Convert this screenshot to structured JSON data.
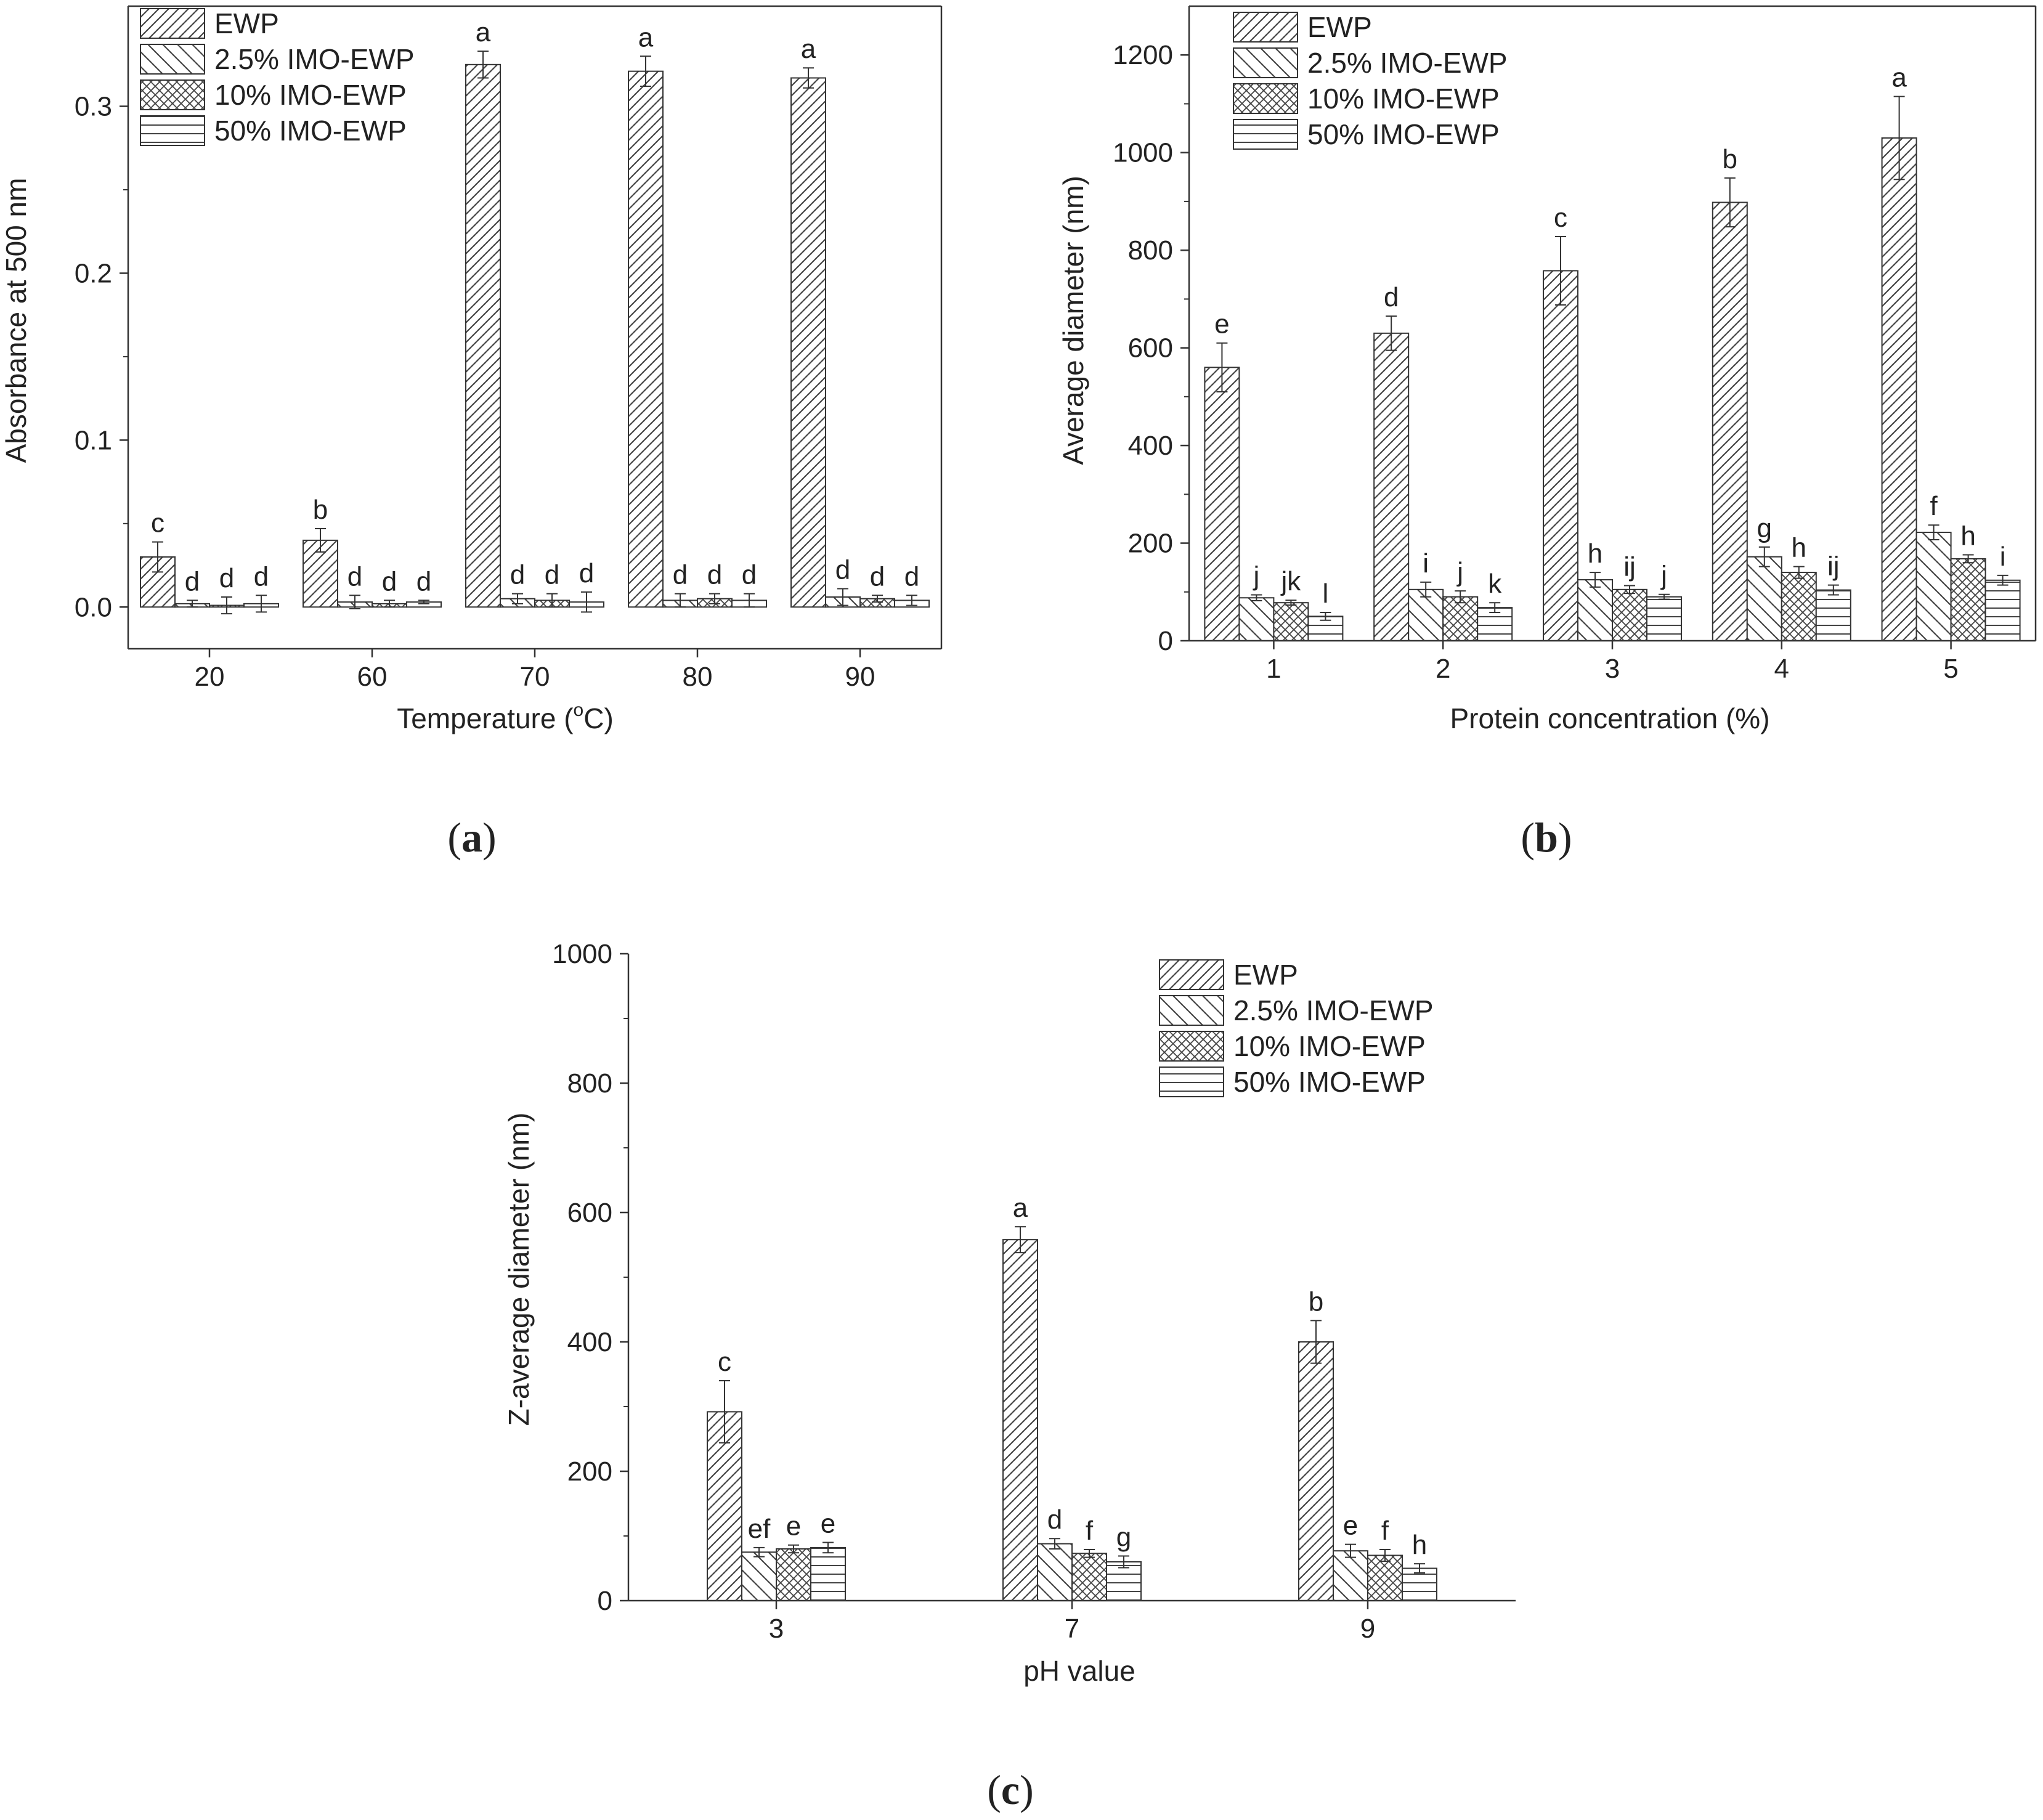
{
  "series_names": [
    "EWP",
    "2.5% IMO-EWP",
    "10% IMO-EWP",
    "50% IMO-EWP"
  ],
  "panel_labels": [
    "a",
    "b",
    "c"
  ],
  "chart_data": [
    {
      "id": "a",
      "type": "bar",
      "title": "",
      "xlabel": "Temperature (",
      "xlabel_sup": "o",
      "xlabel_tail": "C)",
      "ylabel": "Absorbance at  500 nm",
      "categories": [
        "20",
        "60",
        "70",
        "80",
        "90"
      ],
      "ylim": [
        -0.025,
        0.36
      ],
      "yticks": [
        0.0,
        0.1,
        0.2,
        0.3
      ],
      "ytick_labels": [
        "0.0",
        "0.1",
        "0.2",
        "0.3"
      ],
      "legend_position": "top-left",
      "grid": false,
      "series": [
        {
          "name": "EWP",
          "values": [
            0.03,
            0.04,
            0.325,
            0.321,
            0.317
          ],
          "errors": [
            0.009,
            0.007,
            0.008,
            0.009,
            0.006
          ],
          "labels": [
            "c",
            "b",
            "a",
            "a",
            "a"
          ]
        },
        {
          "name": "2.5% IMO-EWP",
          "values": [
            0.002,
            0.003,
            0.005,
            0.004,
            0.006
          ],
          "errors": [
            0.002,
            0.004,
            0.003,
            0.004,
            0.005
          ],
          "labels": [
            "d",
            "d",
            "d",
            "d",
            "d"
          ]
        },
        {
          "name": "10% IMO-EWP",
          "values": [
            0.001,
            0.002,
            0.004,
            0.005,
            0.005
          ],
          "errors": [
            0.005,
            0.002,
            0.004,
            0.003,
            0.002
          ],
          "labels": [
            "d",
            "d",
            "d",
            "d",
            "d"
          ]
        },
        {
          "name": "50% IMO-EWP",
          "values": [
            0.002,
            0.003,
            0.003,
            0.004,
            0.004
          ],
          "errors": [
            0.005,
            0.001,
            0.006,
            0.004,
            0.003
          ],
          "labels": [
            "d",
            "d",
            "d",
            "d",
            "d"
          ]
        }
      ]
    },
    {
      "id": "b",
      "type": "bar",
      "title": "",
      "xlabel": "Protein concentration (%)",
      "ylabel": "Average diameter (nm)",
      "categories": [
        "1",
        "2",
        "3",
        "4",
        "5"
      ],
      "ylim": [
        0,
        1300
      ],
      "yticks": [
        0,
        200,
        400,
        600,
        800,
        1000,
        1200
      ],
      "ytick_labels": [
        "0",
        "200",
        "400",
        "600",
        "800",
        "1000",
        "1200"
      ],
      "legend_position": "top-left",
      "grid": false,
      "series": [
        {
          "name": "EWP",
          "values": [
            560,
            630,
            758,
            898,
            1030
          ],
          "errors": [
            50,
            35,
            70,
            50,
            85
          ],
          "labels": [
            "e",
            "d",
            "c",
            "b",
            "a"
          ]
        },
        {
          "name": "2.5% IMO-EWP",
          "values": [
            88,
            105,
            125,
            172,
            222
          ],
          "errors": [
            6,
            15,
            15,
            20,
            15
          ],
          "labels": [
            "j",
            "i",
            "h",
            "g",
            "f"
          ]
        },
        {
          "name": "10% IMO-EWP",
          "values": [
            78,
            90,
            105,
            140,
            168
          ],
          "errors": [
            5,
            12,
            8,
            12,
            8
          ],
          "labels": [
            "jk",
            "j",
            "ij",
            "h",
            "h"
          ]
        },
        {
          "name": "50% IMO-EWP",
          "values": [
            50,
            68,
            90,
            104,
            124
          ],
          "errors": [
            8,
            10,
            5,
            10,
            10
          ],
          "labels": [
            "l",
            "k",
            "j",
            "ij",
            "i"
          ]
        }
      ]
    },
    {
      "id": "c",
      "type": "bar",
      "title": "",
      "xlabel": "pH value",
      "ylabel": "Z-average diameter (nm)",
      "categories": [
        "3",
        "7",
        "9"
      ],
      "ylim": [
        0,
        1000
      ],
      "yticks": [
        0,
        200,
        400,
        600,
        800,
        1000
      ],
      "ytick_labels": [
        "0",
        "200",
        "400",
        "600",
        "800",
        "1000"
      ],
      "legend_position": "top-right",
      "grid": false,
      "series": [
        {
          "name": "EWP",
          "values": [
            292,
            558,
            400
          ],
          "errors": [
            48,
            20,
            33
          ],
          "labels": [
            "c",
            "a",
            "b"
          ]
        },
        {
          "name": "2.5% IMO-EWP",
          "values": [
            75,
            88,
            77
          ],
          "errors": [
            7,
            8,
            10
          ],
          "labels": [
            "ef",
            "d",
            "e"
          ]
        },
        {
          "name": "10% IMO-EWP",
          "values": [
            80,
            73,
            70
          ],
          "errors": [
            6,
            6,
            9
          ],
          "labels": [
            "e",
            "f",
            "f"
          ]
        },
        {
          "name": "50% IMO-EWP",
          "values": [
            82,
            60,
            50
          ],
          "errors": [
            8,
            9,
            7
          ],
          "labels": [
            "e",
            "g",
            "h"
          ]
        }
      ]
    }
  ]
}
